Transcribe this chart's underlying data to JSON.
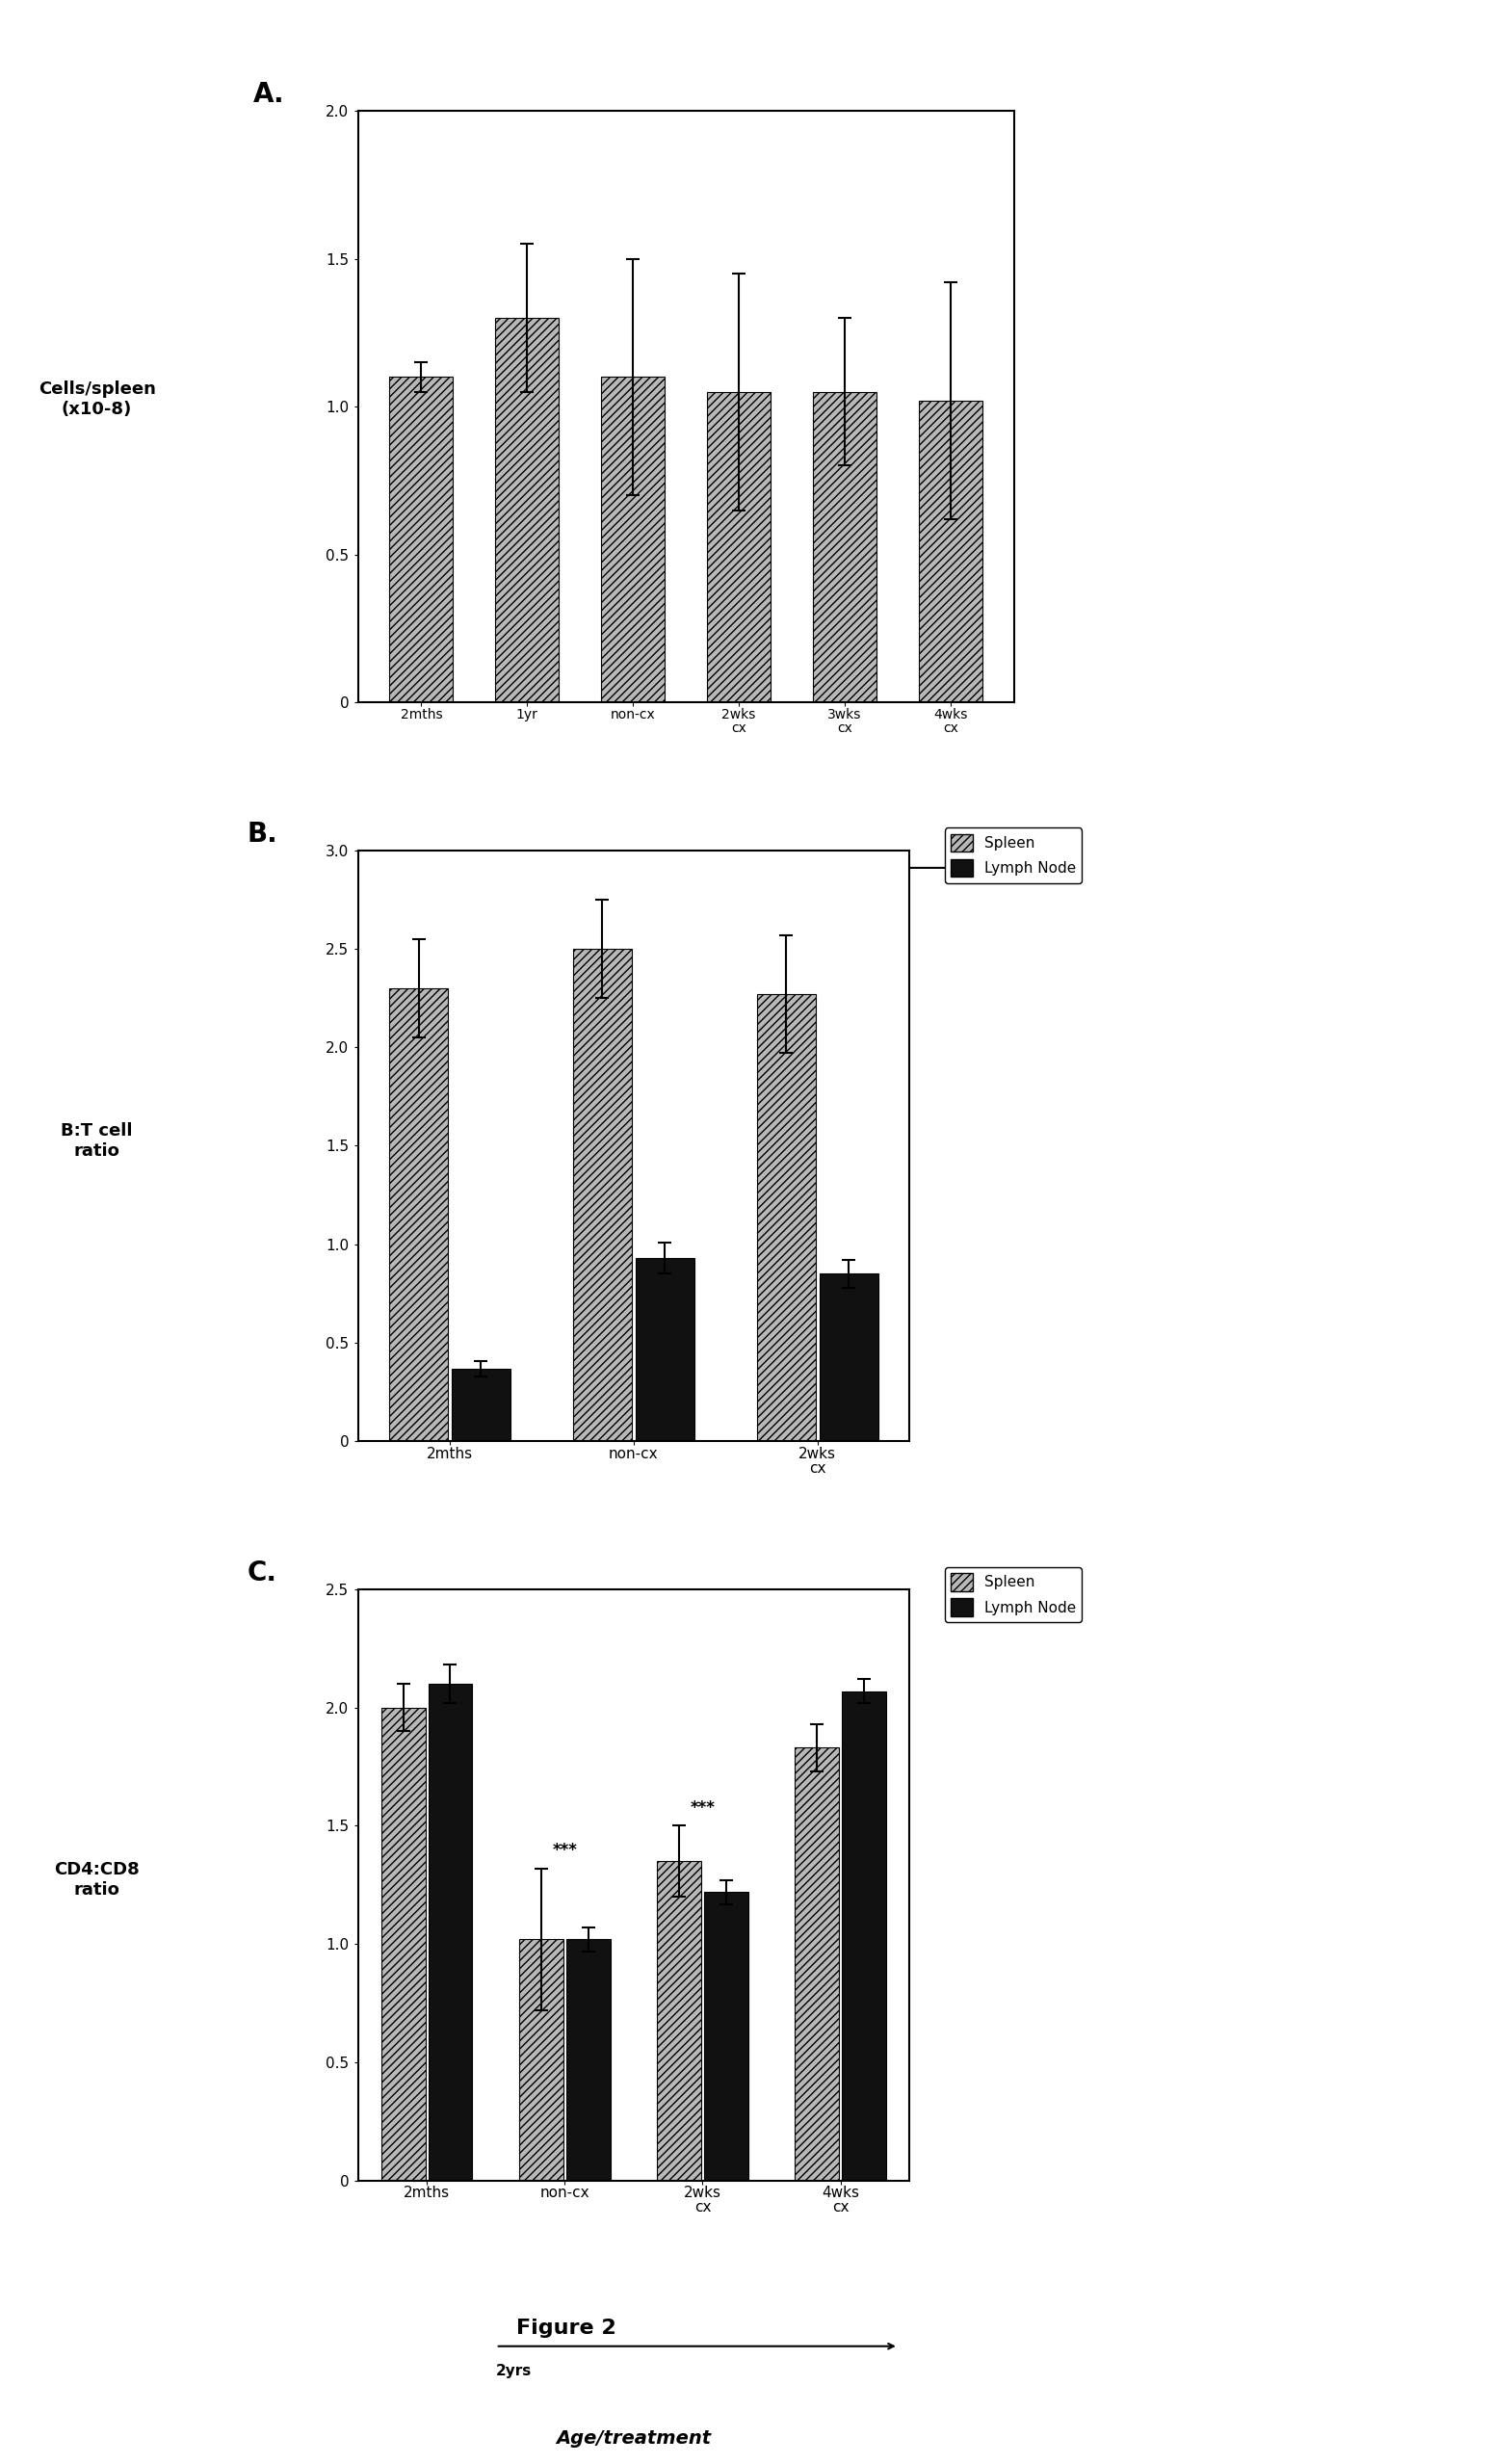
{
  "panel_A": {
    "title": "A.",
    "categories": [
      "2mths",
      "1yr",
      "non-cx",
      "2wks\ncx",
      "3wks\ncx",
      "4wks\ncx"
    ],
    "values": [
      1.1,
      1.3,
      1.1,
      1.05,
      1.05,
      1.02
    ],
    "errors": [
      0.05,
      0.25,
      0.4,
      0.4,
      0.25,
      0.4
    ],
    "ylim": [
      0,
      2.0
    ],
    "yticks": [
      0,
      0.5,
      1.0,
      1.5,
      2.0
    ],
    "ytick_labels": [
      "0",
      "0.5",
      "1.0",
      "1.5",
      "2.0"
    ],
    "ylabel": "Cells/spleen\n(x10-8)",
    "xlabel": "Age/treatment",
    "arrow_label": "2yrs"
  },
  "panel_B": {
    "title": "B.",
    "categories": [
      "2mths",
      "non-cx",
      "2wks\ncx"
    ],
    "spleen_values": [
      2.3,
      2.5,
      2.27
    ],
    "spleen_errors": [
      0.25,
      0.25,
      0.3
    ],
    "lymph_values": [
      0.37,
      0.93,
      0.85
    ],
    "lymph_errors": [
      0.04,
      0.08,
      0.07
    ],
    "ylim": [
      0,
      3.0
    ],
    "yticks": [
      0,
      0.5,
      1.0,
      1.5,
      2.0,
      2.5,
      3.0
    ],
    "ytick_labels": [
      "0",
      "0.5",
      "1.0",
      "1.5",
      "2.0",
      "2.5",
      "3.0"
    ],
    "ylabel": "B:T cell\nratio",
    "xlabel": "Age/treatment",
    "arrow_label": "2yrs"
  },
  "panel_C": {
    "title": "C.",
    "categories": [
      "2mths",
      "non-cx",
      "2wks\ncx",
      "4wks\ncx"
    ],
    "spleen_values": [
      2.0,
      1.02,
      1.35,
      1.83
    ],
    "spleen_errors": [
      0.1,
      0.3,
      0.15,
      0.1
    ],
    "lymph_values": [
      2.1,
      1.02,
      1.22,
      2.07
    ],
    "lymph_errors": [
      0.08,
      0.05,
      0.05,
      0.05
    ],
    "significance": [
      "",
      "***",
      "***",
      ""
    ],
    "ylim": [
      0,
      2.5
    ],
    "yticks": [
      0,
      0.5,
      1.0,
      1.5,
      2.0,
      2.5
    ],
    "ytick_labels": [
      "0",
      "0.5",
      "1.0",
      "1.5",
      "2.0",
      "2.5"
    ],
    "ylabel": "CD4:CD8\nratio",
    "xlabel": "Age/treatment",
    "arrow_label": "2yrs"
  },
  "spleen_color": "#b8b8b8",
  "spleen_hatch": "////",
  "lymph_color": "#111111",
  "background_color": "#ffffff",
  "figure_caption": "Figure 2",
  "legend_spleen": "Spleen",
  "legend_lymph": "Lymph Node"
}
